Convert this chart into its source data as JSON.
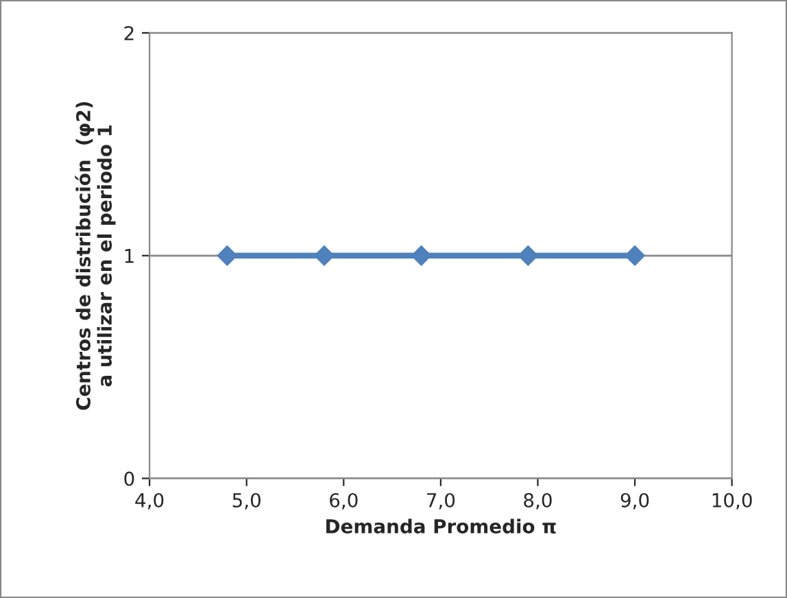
{
  "chart_data": {
    "type": "line",
    "xlabel": "Demanda Promedio π",
    "ylabel": "Centros de distribución  (φ2)\na utilizar en el periodo 1",
    "x": [
      4.8,
      5.8,
      6.8,
      7.9,
      9.0
    ],
    "series": [
      {
        "color": "#4f81bd",
        "values": [
          1,
          1,
          1,
          1,
          1
        ]
      }
    ],
    "xlim": [
      4.0,
      10.0
    ],
    "xticks": [
      {
        "value": 4.0,
        "label": "4,0"
      },
      {
        "value": 5.0,
        "label": "5,0"
      },
      {
        "value": 6.0,
        "label": "6,0"
      },
      {
        "value": 7.0,
        "label": "7,0"
      },
      {
        "value": 8.0,
        "label": "8,0"
      },
      {
        "value": 9.0,
        "label": "9,0"
      },
      {
        "value": 10.0,
        "label": "10,0"
      }
    ],
    "ylim": [
      0,
      2
    ],
    "yticks": [
      0,
      1,
      2
    ],
    "grid": "y",
    "marker": "diamond",
    "line_style": "solid"
  }
}
